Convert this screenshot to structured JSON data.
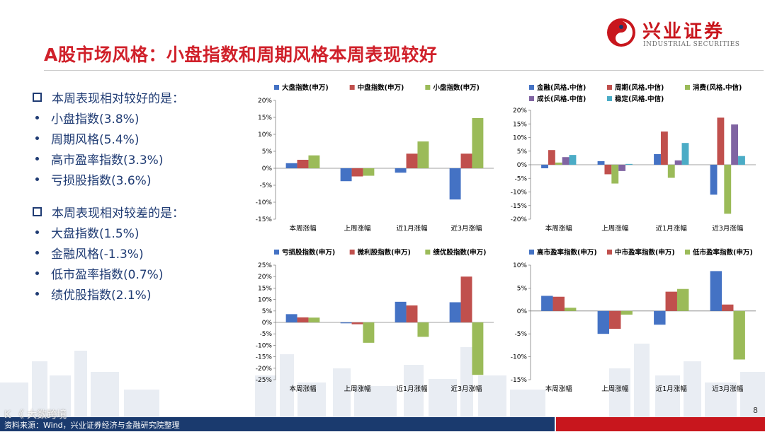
{
  "header": {
    "title": "A股市场风格：小盘指数和周期风格本周表现较好",
    "logo_text": "兴业证券",
    "logo_sub": "INDUSTRIAL SECURITIES"
  },
  "notes": {
    "better_heading": "本周表现相对较好的是：",
    "better_items": [
      "小盘指数(3.8%)",
      "周期风格(5.4%)",
      "高市盈率指数(3.3%)",
      "亏损股指数(3.6%)"
    ],
    "worse_heading": "本周表现相对较差的是：",
    "worse_items": [
      "大盘指数(1.5%)",
      "金融风格(-1.3%)",
      "低市盈率指数(0.7%)",
      "绩优股指数(2.1%)"
    ]
  },
  "footer": {
    "source": "资料来源：Wind，兴业证券经济与金融研究院整理",
    "page": "8",
    "watermark": "K 《 大数跨境"
  },
  "colors": {
    "blue": "#4472c4",
    "red": "#c0504d",
    "green": "#9bbb59",
    "purple": "#8064a2",
    "teal": "#4bacc6"
  },
  "chart_data": [
    {
      "type": "bar",
      "categories": [
        "本周涨幅",
        "上周涨幅",
        "近1月涨幅",
        "近3月涨幅"
      ],
      "series": [
        {
          "name": "大盘指数(申万)",
          "color": "#4472c4",
          "values": [
            1.5,
            -3.8,
            -1.3,
            -9.2
          ]
        },
        {
          "name": "中盘指数(申万)",
          "color": "#c0504d",
          "values": [
            2.5,
            -2.4,
            4.3,
            4.3
          ]
        },
        {
          "name": "小盘指数(申万)",
          "color": "#9bbb59",
          "values": [
            3.8,
            -2.2,
            7.9,
            14.8
          ]
        }
      ],
      "ylim": [
        -15,
        20
      ],
      "ystep": 5,
      "yticks": [
        "-15%",
        "-10%",
        "-5%",
        "0%",
        "5%",
        "10%",
        "15%",
        "20%"
      ],
      "legend_rows": 1
    },
    {
      "type": "bar",
      "categories": [
        "本周涨幅",
        "上周涨幅",
        "近1月涨幅",
        "近3月涨幅"
      ],
      "series": [
        {
          "name": "金融(风格.中信)",
          "color": "#4472c4",
          "values": [
            -1.3,
            1.3,
            3.9,
            -11.0
          ]
        },
        {
          "name": "周期(风格.中信)",
          "color": "#c0504d",
          "values": [
            5.4,
            -3.5,
            12.2,
            17.3
          ]
        },
        {
          "name": "消费(风格.中信)",
          "color": "#9bbb59",
          "values": [
            0.8,
            -6.9,
            -4.8,
            -18.0
          ]
        },
        {
          "name": "成长(风格.中信)",
          "color": "#8064a2",
          "values": [
            2.8,
            -2.3,
            1.6,
            14.8
          ]
        },
        {
          "name": "稳定(风格.中信)",
          "color": "#4bacc6",
          "values": [
            3.6,
            0.3,
            8.0,
            3.2
          ]
        }
      ],
      "ylim": [
        -20,
        20
      ],
      "ystep": 5,
      "yticks": [
        "-20%",
        "-15%",
        "-10%",
        "-5%",
        "0%",
        "5%",
        "10%",
        "15%",
        "20%"
      ],
      "legend_rows": 2
    },
    {
      "type": "bar",
      "categories": [
        "本周涨幅",
        "上周涨幅",
        "近1月涨幅",
        "近3月涨幅"
      ],
      "series": [
        {
          "name": "亏损股指数(申万)",
          "color": "#4472c4",
          "values": [
            3.6,
            -0.4,
            9.0,
            8.8
          ]
        },
        {
          "name": "微利股指数(申万)",
          "color": "#c0504d",
          "values": [
            2.2,
            -0.8,
            7.4,
            20.0
          ]
        },
        {
          "name": "绩优股指数(申万)",
          "color": "#9bbb59",
          "values": [
            2.1,
            -8.9,
            -6.3,
            -22.9
          ]
        }
      ],
      "ylim": [
        -25,
        25
      ],
      "ystep": 5,
      "yticks": [
        "-25%",
        "-20%",
        "-15%",
        "-10%",
        "-5%",
        "0%",
        "5%",
        "10%",
        "15%",
        "20%",
        "25%"
      ],
      "legend_rows": 1
    },
    {
      "type": "bar",
      "categories": [
        "本周涨幅",
        "上周涨幅",
        "近1月涨幅",
        "近3月涨幅"
      ],
      "series": [
        {
          "name": "高市盈率指数(申万)",
          "color": "#4472c4",
          "values": [
            3.3,
            -5.0,
            -3.0,
            8.7
          ]
        },
        {
          "name": "中市盈率指数(申万)",
          "color": "#c0504d",
          "values": [
            3.1,
            -3.9,
            4.2,
            1.4
          ]
        },
        {
          "name": "低市盈率指数(申万)",
          "color": "#9bbb59",
          "values": [
            0.7,
            -0.8,
            4.8,
            -10.6
          ]
        }
      ],
      "ylim": [
        -15,
        10
      ],
      "ystep": 5,
      "yticks": [
        "-15%",
        "-10%",
        "-5%",
        "0%",
        "5%",
        "10%"
      ],
      "legend_rows": 1
    }
  ]
}
